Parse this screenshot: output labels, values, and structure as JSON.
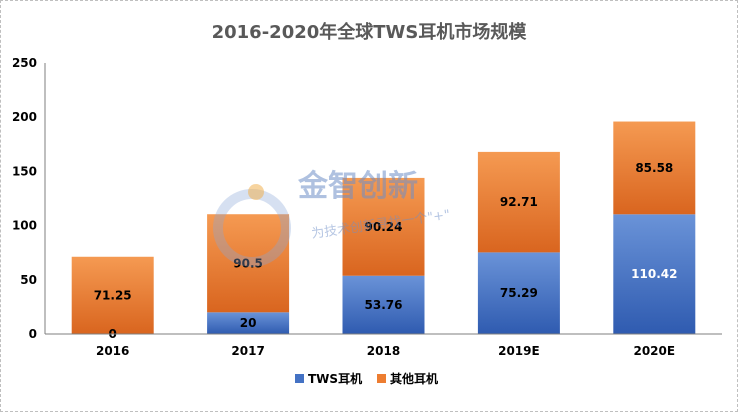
{
  "chart_data": {
    "type": "bar",
    "stacked": true,
    "title": "2016-2020年全球TWS耳机市场规模",
    "categories": [
      "2016",
      "2017",
      "2018",
      "2019E",
      "2020E"
    ],
    "series": [
      {
        "name": "TWS耳机",
        "values": [
          0,
          20,
          53.76,
          75.29,
          110.42
        ],
        "labels": [
          "0",
          "20",
          "53.76",
          "75.29",
          "110.42"
        ],
        "color": "#4472c4"
      },
      {
        "name": "其他耳机",
        "values": [
          71.25,
          90.5,
          90.24,
          92.71,
          85.58
        ],
        "labels": [
          "71.25",
          "90.5",
          "90.24",
          "92.71",
          "85.58"
        ],
        "color": "#ed7d31"
      }
    ],
    "ylim": [
      0,
      250
    ],
    "yticks": [
      "0",
      "50",
      "100",
      "150",
      "200",
      "250"
    ],
    "grid": false,
    "legend_position": "bottom"
  },
  "watermark": {
    "main": "金智创新",
    "sub": "为技术创新寻找一个\"+\""
  }
}
